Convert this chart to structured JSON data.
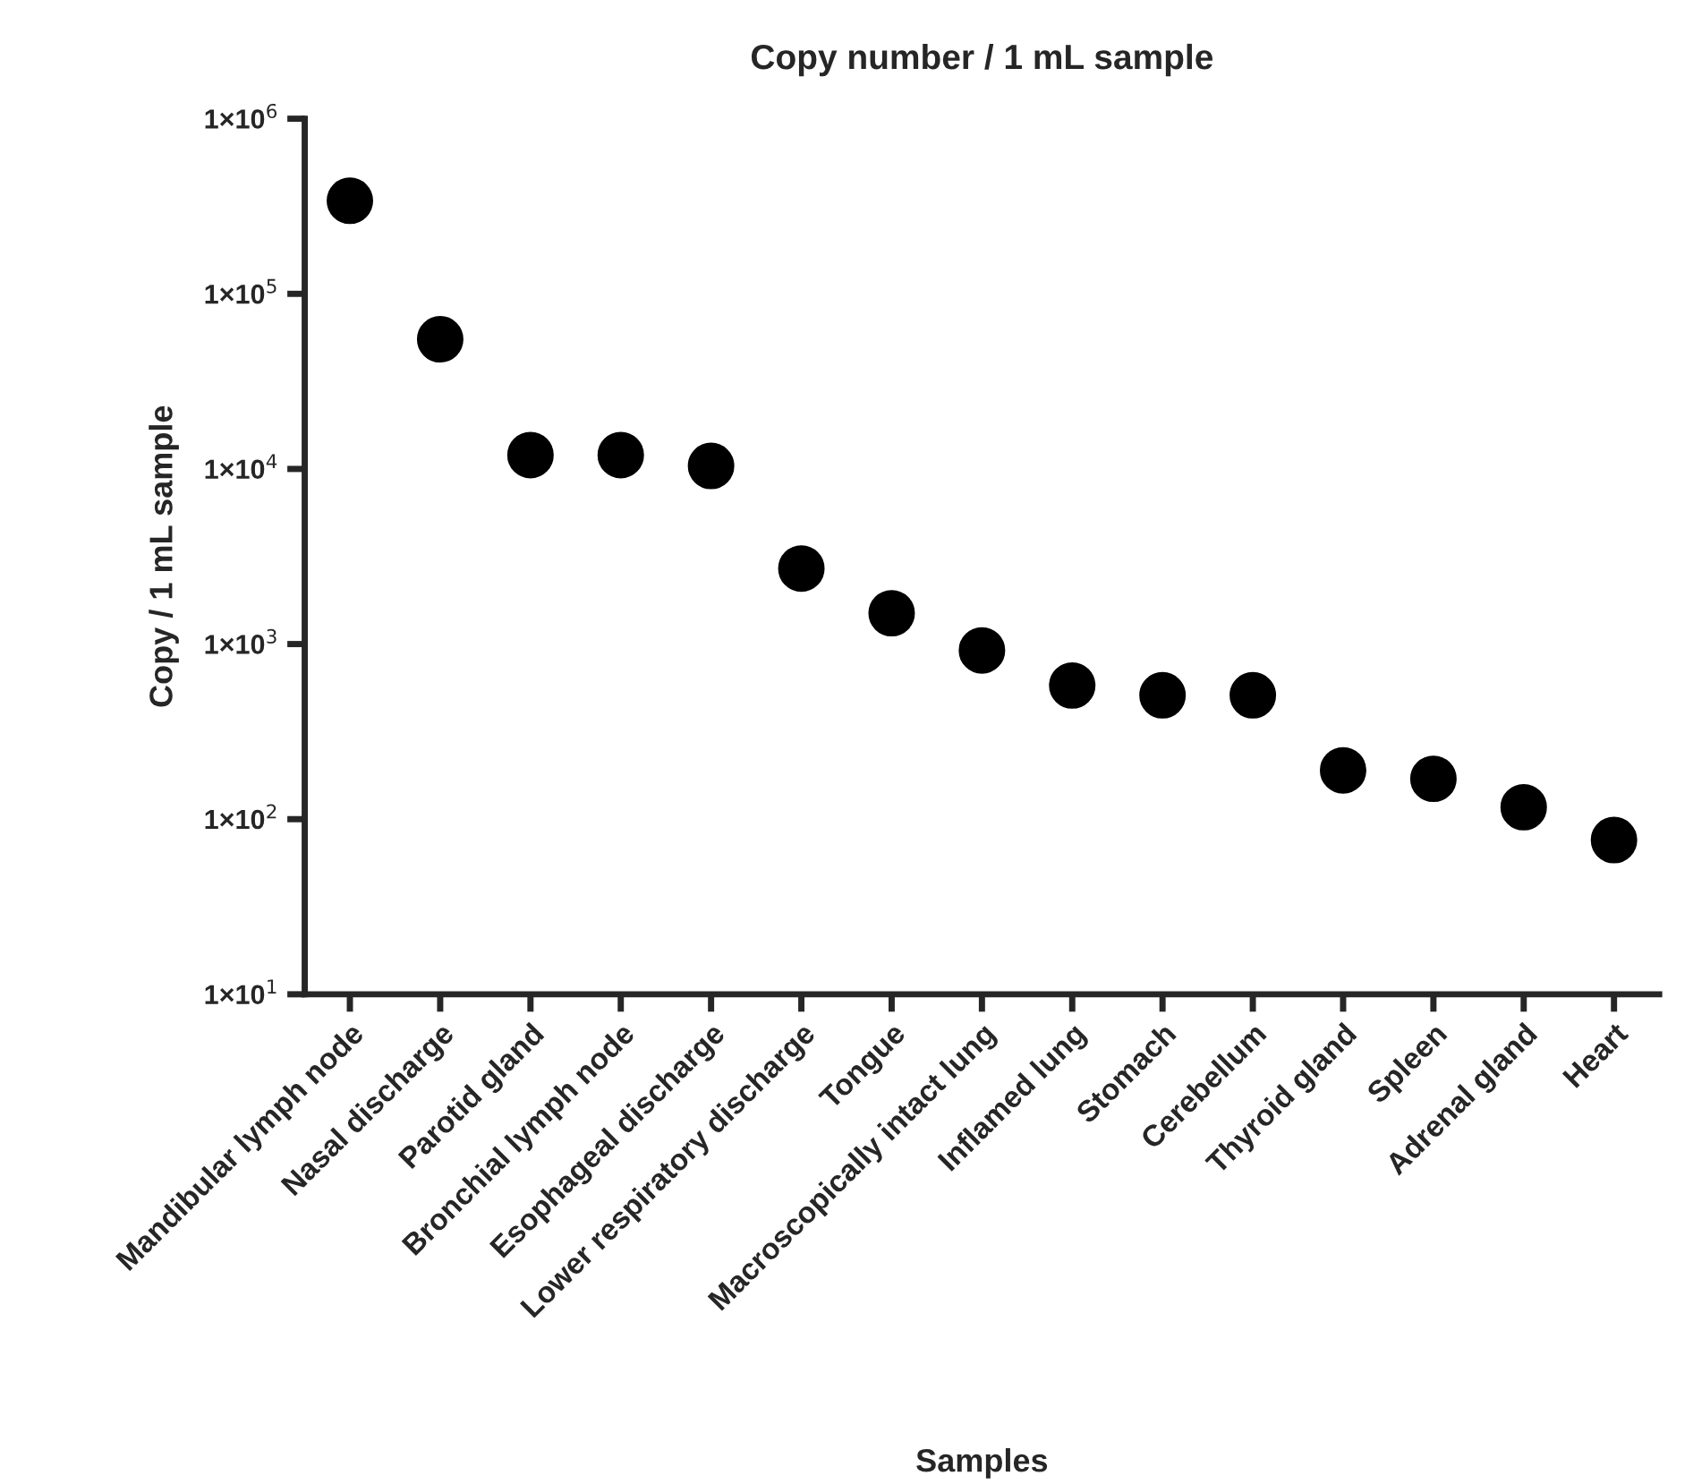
{
  "chart_data": {
    "type": "scatter",
    "title": "Copy number / 1 mL sample",
    "xlabel": "Samples",
    "ylabel": "Copy / 1 mL sample",
    "categories": [
      "Mandibular lymph node",
      "Nasal discharge",
      "Parotid gland",
      "Bronchial lymph node",
      "Esophageal discharge",
      "Lower respiratory discharge",
      "Tongue",
      "Macroscopically intact lung",
      "Inflamed lung",
      "Stomach",
      "Cerebellum",
      "Thyroid gland",
      "Spleen",
      "Adrenal gland",
      "Heart"
    ],
    "series": [
      {
        "color": "#000000",
        "values": [
          340000,
          55000,
          12000,
          12000,
          10400,
          2700,
          1500,
          920,
          580,
          510,
          510,
          190,
          170,
          117,
          76
        ]
      }
    ],
    "log": "y",
    "ylim": [
      10,
      1000000
    ],
    "yticks": [
      {
        "value": 10,
        "label": "1×10$^{1}$"
      },
      {
        "value": 100,
        "label": "1×10$^{2}$"
      },
      {
        "value": 1000,
        "label": "1×10$^{3}$"
      },
      {
        "value": 10000,
        "label": "1×10$^{4}$"
      },
      {
        "value": 100000,
        "label": "1×10$^{5}$"
      },
      {
        "value": 1000000,
        "label": "1×10$^{6}$"
      }
    ],
    "grid": false,
    "legend": false,
    "marker": "circle"
  }
}
